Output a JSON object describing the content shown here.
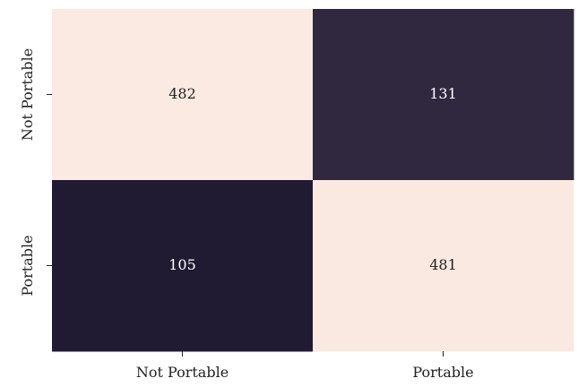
{
  "chart_data": {
    "type": "heatmap",
    "title": "",
    "xlabel": "",
    "ylabel": "",
    "x_categories": [
      "Not Portable",
      "Portable"
    ],
    "y_categories": [
      "Not Portable",
      "Portable"
    ],
    "values": [
      [
        482,
        131
      ],
      [
        105,
        481
      ]
    ],
    "colors": {
      "high": "#fbeae1",
      "low": "#211a33",
      "text_on_high": "#222222",
      "text_on_low": "#ffffff"
    },
    "grid": false,
    "legend": "none"
  }
}
